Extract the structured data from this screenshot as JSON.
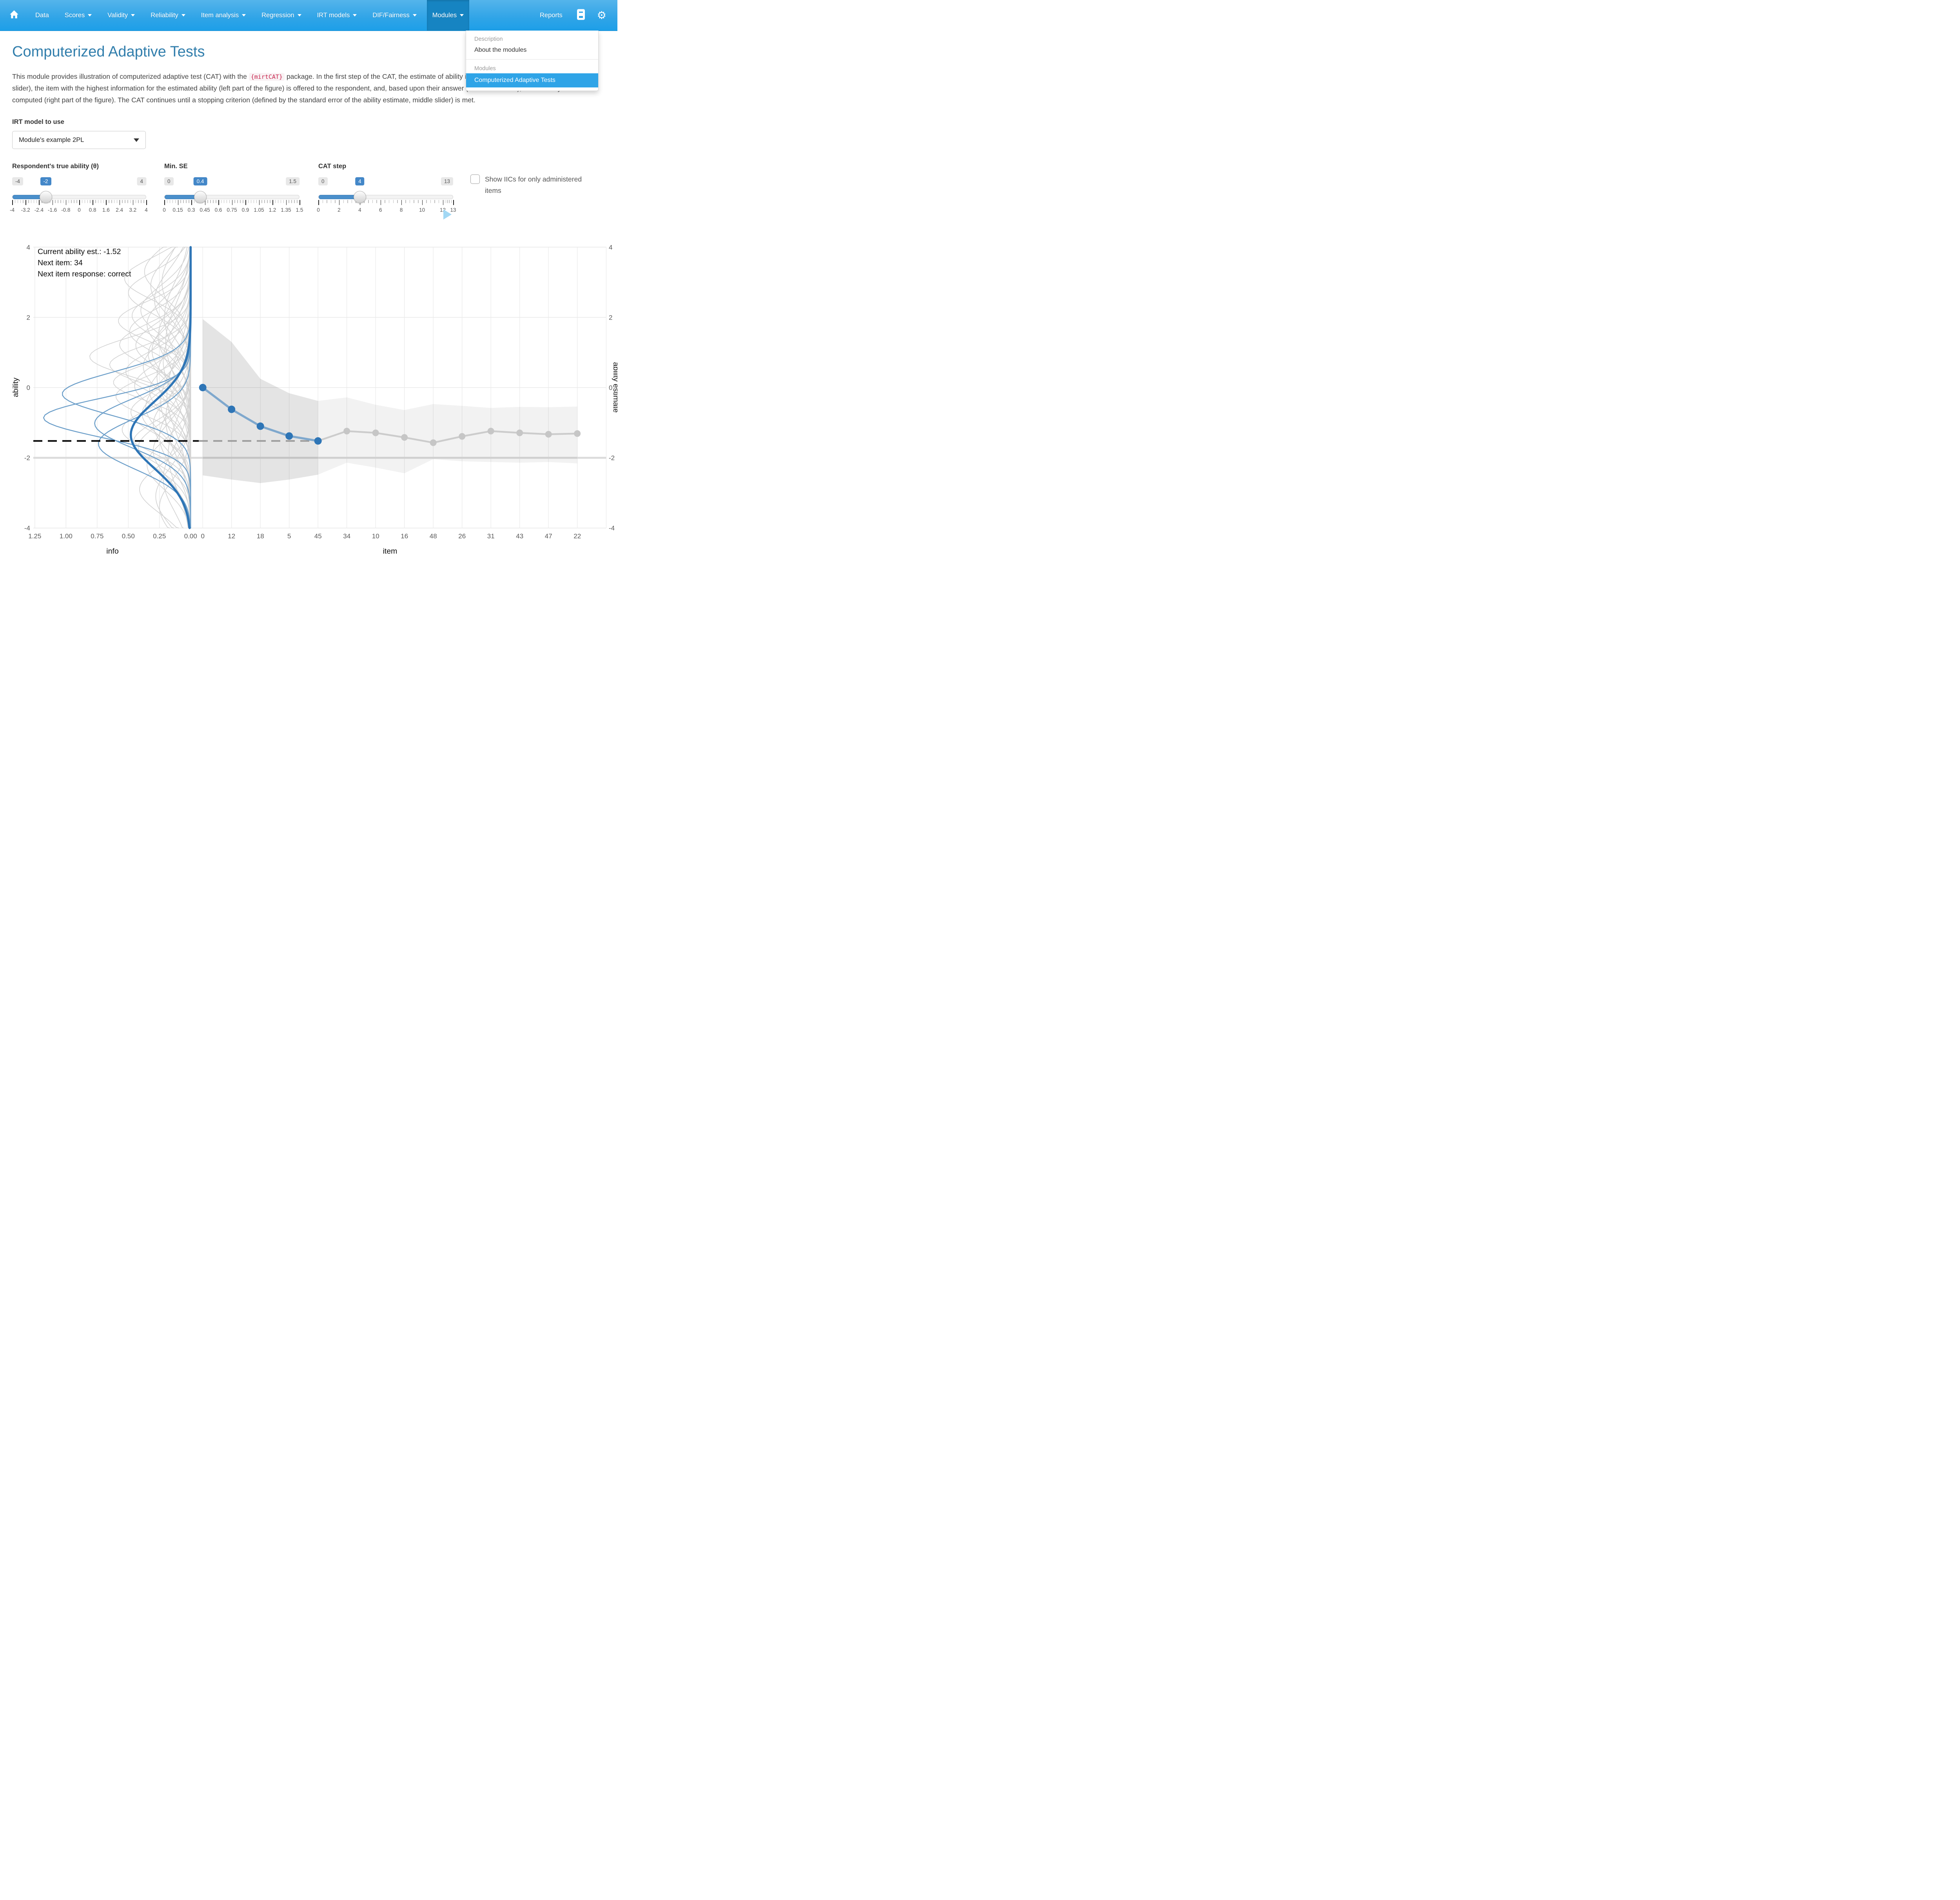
{
  "colors": {
    "accent": "#2fa4e7",
    "navbar_active": "#1684c2",
    "title": "#317eac",
    "slider_blue": "#4387c8",
    "chart_blue": "#2e75b6",
    "chart_blue_light": "#7fa8cd",
    "curve_thin_blue": "#6b9ec9",
    "gray_curve": "#d3d3d3",
    "future_gray": "#c8c8c8",
    "code_red": "#c7254e"
  },
  "navbar": {
    "items": [
      {
        "label": "Data",
        "caret": false
      },
      {
        "label": "Scores",
        "caret": true
      },
      {
        "label": "Validity",
        "caret": true
      },
      {
        "label": "Reliability",
        "caret": true
      },
      {
        "label": "Item analysis",
        "caret": true
      },
      {
        "label": "Regression",
        "caret": true
      },
      {
        "label": "IRT models",
        "caret": true
      },
      {
        "label": "DIF/Fairness",
        "caret": true
      },
      {
        "label": "Modules",
        "caret": true,
        "active": true
      }
    ],
    "reports_label": "Reports"
  },
  "menu": {
    "header_description": "Description",
    "item_about": "About the modules",
    "header_modules": "Modules",
    "item_active": "Computerized Adaptive Tests"
  },
  "page": {
    "title": "Computerized Adaptive Tests",
    "intro_before": "This module provides illustration of computerized adaptive test (CAT) with the ",
    "intro_code": "{mirtCAT}",
    "intro_after": " package. In the first step of the CAT, the estimate of ability is preset at 0. In each step of the CAT (right slider), the item with the highest information for the estimated ability (left part of the figure) is offered to the respondent, and, based upon their answer (correct/incorrect), a new ability estimate is computed (right part of the figure). The CAT continues until a stopping criterion (defined by the standard error of the ability estimate, middle slider) is met."
  },
  "controls": {
    "irt_label": "IRT model to use",
    "irt_value": "Module's example 2PL",
    "sliders": [
      {
        "label": "Respondent's true ability (θ)",
        "min": -4,
        "max": 4,
        "value": -2,
        "min_label": "-4",
        "max_label": "4",
        "value_label": "-2",
        "ticks": [
          {
            "v": -4,
            "l": "-4"
          },
          {
            "v": -3.2,
            "l": "-3.2"
          },
          {
            "v": -2.4,
            "l": "-2.4"
          },
          {
            "v": -1.6,
            "l": "-1.6"
          },
          {
            "v": -0.8,
            "l": "-0.8"
          },
          {
            "v": 0,
            "l": "0"
          },
          {
            "v": 0.8,
            "l": "0.8"
          },
          {
            "v": 1.6,
            "l": "1.6"
          },
          {
            "v": 2.4,
            "l": "2.4"
          },
          {
            "v": 3.2,
            "l": "3.2"
          },
          {
            "v": 4,
            "l": "4"
          }
        ]
      },
      {
        "label": "Min. SE",
        "min": 0,
        "max": 1.5,
        "value": 0.4,
        "min_label": "0",
        "max_label": "1.5",
        "value_label": "0.4",
        "ticks": [
          {
            "v": 0,
            "l": "0"
          },
          {
            "v": 0.15,
            "l": "0.15"
          },
          {
            "v": 0.3,
            "l": "0.3"
          },
          {
            "v": 0.45,
            "l": "0.45"
          },
          {
            "v": 0.6,
            "l": "0.6"
          },
          {
            "v": 0.75,
            "l": "0.75"
          },
          {
            "v": 0.9,
            "l": "0.9"
          },
          {
            "v": 1.05,
            "l": "1.05"
          },
          {
            "v": 1.2,
            "l": "1.2"
          },
          {
            "v": 1.35,
            "l": "1.35"
          },
          {
            "v": 1.5,
            "l": "1.5"
          }
        ]
      },
      {
        "label": "CAT step",
        "min": 0,
        "max": 13,
        "value": 4,
        "min_label": "0",
        "max_label": "13",
        "value_label": "4",
        "ticks": [
          {
            "v": 0,
            "l": "0"
          },
          {
            "v": 2,
            "l": "2"
          },
          {
            "v": 4,
            "l": "4"
          },
          {
            "v": 6,
            "l": "6"
          },
          {
            "v": 8,
            "l": "8"
          },
          {
            "v": 10,
            "l": "10"
          },
          {
            "v": 12,
            "l": "12"
          },
          {
            "v": 13,
            "l": "13"
          }
        ]
      }
    ],
    "checkbox_label": "Show IICs for only administered items",
    "checkbox_checked": false
  },
  "chart_data": {
    "type": "line",
    "annotation": [
      "Current ability est.: -1.52",
      "Next item: 34",
      "Next item response: correct"
    ],
    "current_estimate": -1.52,
    "true_ability": -2,
    "ylim": [
      -4,
      4
    ],
    "y_ticks": [
      {
        "v": 4,
        "l": "4"
      },
      {
        "v": 2,
        "l": "2"
      },
      {
        "v": 0,
        "l": "0"
      },
      {
        "v": -2,
        "l": "-2"
      },
      {
        "v": -4,
        "l": "-4"
      }
    ],
    "ylabel_left": "ability",
    "ylabel_right": "ability estimate",
    "left_panel": {
      "xlabel": "info",
      "x_ticks": [
        {
          "v": 1.25,
          "l": "1.25"
        },
        {
          "v": 1.0,
          "l": "1.00"
        },
        {
          "v": 0.75,
          "l": "0.75"
        },
        {
          "v": 0.5,
          "l": "0.50"
        },
        {
          "v": 0.25,
          "l": "0.25"
        },
        {
          "v": 0,
          "l": "0.00"
        }
      ],
      "xlim": [
        1.25,
        0
      ],
      "administered_iics": [
        {
          "peak_info": 1.03,
          "theta": -0.18,
          "sigma": 0.62
        },
        {
          "peak_info": 1.18,
          "theta": -0.86,
          "sigma": 0.56
        },
        {
          "peak_info": 0.77,
          "theta": -1.02,
          "sigma": 0.7
        },
        {
          "peak_info": 0.74,
          "theta": -1.6,
          "sigma": 0.72
        }
      ],
      "next_item_iic": {
        "peak_info": 0.48,
        "theta": -1.35,
        "sigma": 0.95
      },
      "other_iics": [
        [
          0.28,
          -3.1,
          0.8
        ],
        [
          0.22,
          -2.6,
          0.9
        ],
        [
          0.35,
          -2.2,
          0.7
        ],
        [
          0.18,
          -1.9,
          1.0
        ],
        [
          0.42,
          -1.7,
          0.65
        ],
        [
          0.25,
          -1.4,
          0.85
        ],
        [
          0.55,
          -1.2,
          0.6
        ],
        [
          0.3,
          -1.05,
          0.75
        ],
        [
          0.2,
          -0.9,
          1.0
        ],
        [
          0.48,
          -0.7,
          0.6
        ],
        [
          0.36,
          -0.55,
          0.8
        ],
        [
          0.24,
          -0.4,
          0.95
        ],
        [
          0.6,
          -0.25,
          0.55
        ],
        [
          0.33,
          -0.1,
          0.7
        ],
        [
          0.45,
          0.05,
          0.65
        ],
        [
          0.81,
          0.88,
          0.55
        ],
        [
          0.27,
          0.3,
          0.9
        ],
        [
          0.52,
          0.45,
          0.6
        ],
        [
          0.38,
          0.6,
          0.75
        ],
        [
          0.22,
          0.75,
          1.0
        ],
        [
          0.57,
          1.22,
          0.6
        ],
        [
          0.31,
          1.05,
          0.8
        ],
        [
          0.44,
          1.2,
          0.65
        ],
        [
          0.26,
          1.45,
          0.9
        ],
        [
          0.49,
          1.6,
          0.6
        ],
        [
          0.35,
          1.8,
          0.75
        ],
        [
          0.21,
          2.0,
          1.0
        ],
        [
          0.4,
          2.2,
          0.7
        ],
        [
          0.29,
          2.5,
          0.85
        ],
        [
          0.5,
          2.7,
          0.6
        ],
        [
          0.23,
          3.0,
          0.9
        ],
        [
          0.37,
          3.3,
          0.7
        ],
        [
          0.19,
          -0.2,
          1.1
        ],
        [
          0.62,
          0.15,
          0.5
        ],
        [
          0.46,
          -1.55,
          0.6
        ],
        [
          0.32,
          2.9,
          0.8
        ],
        [
          0.58,
          1.9,
          0.55
        ],
        [
          0.41,
          -2.9,
          0.68
        ],
        [
          0.34,
          0.95,
          0.72
        ],
        [
          0.47,
          2.05,
          0.62
        ],
        [
          0.25,
          -3.4,
          0.75
        ],
        [
          0.53,
          3.1,
          0.58
        ],
        [
          0.39,
          -0.75,
          0.66
        ],
        [
          0.2,
          1.3,
          1.05
        ],
        [
          0.65,
          0.65,
          0.52
        ],
        [
          0.3,
          -1.8,
          0.78
        ]
      ]
    },
    "right_panel": {
      "xlabel": "item",
      "item_labels": [
        "0",
        "12",
        "18",
        "5",
        "45",
        "34",
        "10",
        "16",
        "48",
        "26",
        "31",
        "43",
        "47",
        "22"
      ],
      "administered_estimates": [
        0,
        -0.62,
        -1.1,
        -1.38,
        -1.52
      ],
      "future_estimates": [
        -1.24,
        -1.29,
        -1.42,
        -1.57,
        -1.39,
        -1.24,
        -1.29,
        -1.33,
        -1.31
      ],
      "se_band_administered": {
        "steps": [
          0,
          1,
          2,
          3,
          4
        ],
        "upper": [
          1.95,
          1.3,
          0.25,
          -0.16,
          -0.38
        ],
        "lower": [
          -2.5,
          -2.62,
          -2.72,
          -2.62,
          -2.48
        ]
      },
      "se_band_future": {
        "steps": [
          4,
          5,
          6,
          7,
          8,
          9,
          10,
          11,
          12,
          13
        ],
        "upper": [
          -0.38,
          -0.28,
          -0.49,
          -0.64,
          -0.47,
          -0.52,
          -0.58,
          -0.55,
          -0.56,
          -0.54
        ],
        "lower": [
          -2.48,
          -2.14,
          -2.28,
          -2.44,
          -2.04,
          -2.1,
          -2.12,
          -2.14,
          -2.12,
          -2.16
        ]
      }
    },
    "grid": true,
    "legend": "none"
  }
}
